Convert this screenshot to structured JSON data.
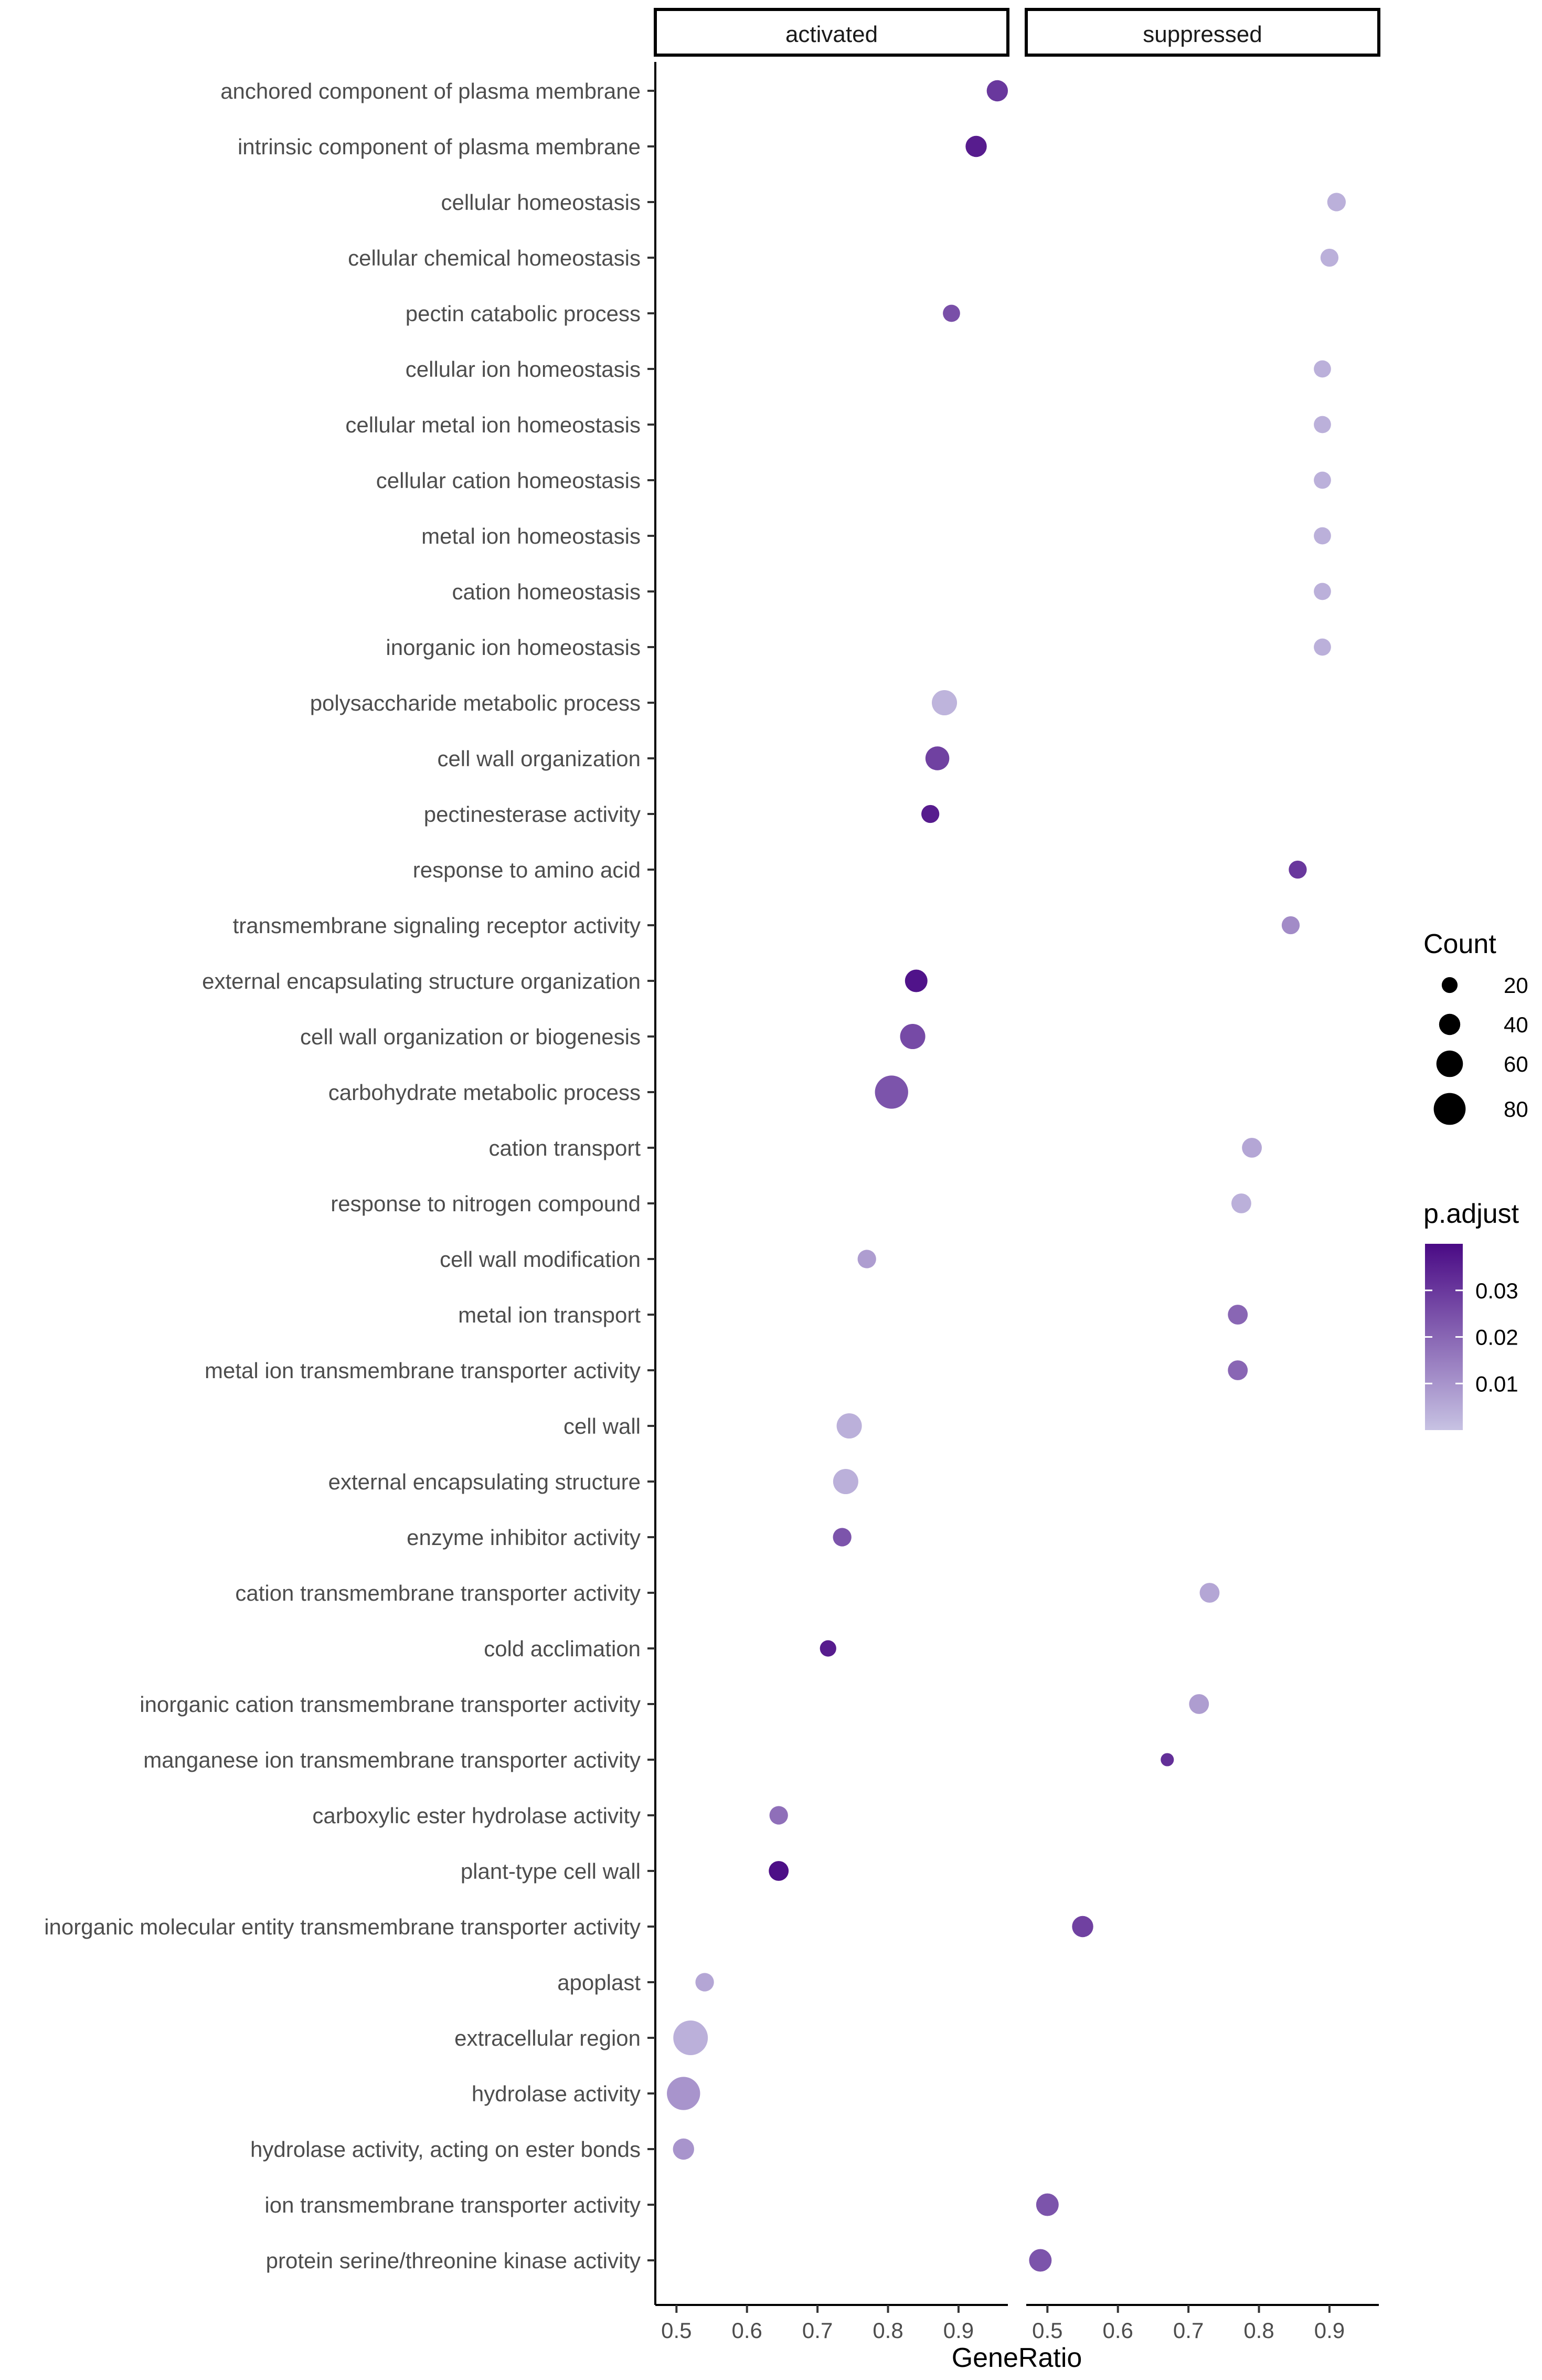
{
  "chart_data": {
    "type": "scatter",
    "title": "",
    "xlabel": "GeneRatio",
    "ylabel": "",
    "facets": [
      "activated",
      "suppressed"
    ],
    "facet_xlim": [
      [
        0.47,
        0.97
      ],
      [
        0.47,
        0.97
      ]
    ],
    "x_ticks": [
      0.5,
      0.6,
      0.7,
      0.8,
      0.9
    ],
    "x_tick_labels": [
      "0.5",
      "0.6",
      "0.7",
      "0.8",
      "0.9"
    ],
    "categories": [
      "anchored component of plasma membrane",
      "intrinsic component of plasma membrane",
      "cellular homeostasis",
      "cellular chemical homeostasis",
      "pectin catabolic process",
      "cellular ion homeostasis",
      "cellular metal ion homeostasis",
      "cellular cation homeostasis",
      "metal ion homeostasis",
      "cation homeostasis",
      "inorganic ion homeostasis",
      "polysaccharide metabolic process",
      "cell wall organization",
      "pectinesterase activity",
      "response to amino acid",
      "transmembrane signaling receptor activity",
      "external encapsulating structure organization",
      "cell wall organization or biogenesis",
      "carbohydrate metabolic process",
      "cation transport",
      "response to nitrogen compound",
      "cell wall modification",
      "metal ion transport",
      "metal ion transmembrane transporter activity",
      "cell wall",
      "external encapsulating structure",
      "enzyme inhibitor activity",
      "cation transmembrane transporter activity",
      "cold acclimation",
      "inorganic cation transmembrane transporter activity",
      "manganese ion transmembrane transporter activity",
      "carboxylic ester hydrolase activity",
      "plant-type cell wall",
      "inorganic molecular entity transmembrane transporter activity",
      "apoplast",
      "extracellular region",
      "hydrolase activity",
      "hydrolase activity, acting on ester bonds",
      "ion transmembrane transporter activity",
      "protein serine/threonine kinase activity"
    ],
    "points": [
      {
        "term": "anchored component of plasma membrane",
        "facet": "activated",
        "gene_ratio": 0.955,
        "count": 40,
        "p_adjust": 0.03
      },
      {
        "term": "intrinsic component of plasma membrane",
        "facet": "activated",
        "gene_ratio": 0.925,
        "count": 40,
        "p_adjust": 0.036
      },
      {
        "term": "cellular homeostasis",
        "facet": "suppressed",
        "gene_ratio": 0.91,
        "count": 30,
        "p_adjust": 0.004
      },
      {
        "term": "cellular chemical homeostasis",
        "facet": "suppressed",
        "gene_ratio": 0.9,
        "count": 28,
        "p_adjust": 0.004
      },
      {
        "term": "pectin catabolic process",
        "facet": "activated",
        "gene_ratio": 0.89,
        "count": 25,
        "p_adjust": 0.025
      },
      {
        "term": "cellular ion homeostasis",
        "facet": "suppressed",
        "gene_ratio": 0.89,
        "count": 25,
        "p_adjust": 0.004
      },
      {
        "term": "cellular metal ion homeostasis",
        "facet": "suppressed",
        "gene_ratio": 0.89,
        "count": 25,
        "p_adjust": 0.004
      },
      {
        "term": "cellular cation homeostasis",
        "facet": "suppressed",
        "gene_ratio": 0.89,
        "count": 25,
        "p_adjust": 0.004
      },
      {
        "term": "metal ion homeostasis",
        "facet": "suppressed",
        "gene_ratio": 0.89,
        "count": 25,
        "p_adjust": 0.004
      },
      {
        "term": "cation homeostasis",
        "facet": "suppressed",
        "gene_ratio": 0.89,
        "count": 25,
        "p_adjust": 0.004
      },
      {
        "term": "inorganic ion homeostasis",
        "facet": "suppressed",
        "gene_ratio": 0.89,
        "count": 25,
        "p_adjust": 0.004
      },
      {
        "term": "polysaccharide metabolic process",
        "facet": "activated",
        "gene_ratio": 0.88,
        "count": 55,
        "p_adjust": 0.003
      },
      {
        "term": "cell wall organization",
        "facet": "activated",
        "gene_ratio": 0.87,
        "count": 50,
        "p_adjust": 0.028
      },
      {
        "term": "pectinesterase activity",
        "facet": "activated",
        "gene_ratio": 0.86,
        "count": 28,
        "p_adjust": 0.036
      },
      {
        "term": "response to amino acid",
        "facet": "suppressed",
        "gene_ratio": 0.855,
        "count": 28,
        "p_adjust": 0.03
      },
      {
        "term": "transmembrane signaling receptor activity",
        "facet": "suppressed",
        "gene_ratio": 0.845,
        "count": 28,
        "p_adjust": 0.012
      },
      {
        "term": "external encapsulating structure organization",
        "facet": "activated",
        "gene_ratio": 0.84,
        "count": 45,
        "p_adjust": 0.038
      },
      {
        "term": "cell wall organization or biogenesis",
        "facet": "activated",
        "gene_ratio": 0.835,
        "count": 55,
        "p_adjust": 0.026
      },
      {
        "term": "carbohydrate metabolic process",
        "facet": "activated",
        "gene_ratio": 0.805,
        "count": 85,
        "p_adjust": 0.024
      },
      {
        "term": "cation transport",
        "facet": "suppressed",
        "gene_ratio": 0.79,
        "count": 35,
        "p_adjust": 0.006
      },
      {
        "term": "response to nitrogen compound",
        "facet": "suppressed",
        "gene_ratio": 0.775,
        "count": 35,
        "p_adjust": 0.004
      },
      {
        "term": "cell wall modification",
        "facet": "activated",
        "gene_ratio": 0.77,
        "count": 30,
        "p_adjust": 0.008
      },
      {
        "term": "metal ion transport",
        "facet": "suppressed",
        "gene_ratio": 0.77,
        "count": 35,
        "p_adjust": 0.02
      },
      {
        "term": "metal ion transmembrane transporter activity",
        "facet": "suppressed",
        "gene_ratio": 0.77,
        "count": 35,
        "p_adjust": 0.02
      },
      {
        "term": "cell wall",
        "facet": "activated",
        "gene_ratio": 0.745,
        "count": 55,
        "p_adjust": 0.004
      },
      {
        "term": "external encapsulating structure",
        "facet": "activated",
        "gene_ratio": 0.74,
        "count": 55,
        "p_adjust": 0.004
      },
      {
        "term": "enzyme inhibitor activity",
        "facet": "activated",
        "gene_ratio": 0.735,
        "count": 30,
        "p_adjust": 0.024
      },
      {
        "term": "cation transmembrane transporter activity",
        "facet": "suppressed",
        "gene_ratio": 0.73,
        "count": 35,
        "p_adjust": 0.006
      },
      {
        "term": "cold acclimation",
        "facet": "activated",
        "gene_ratio": 0.715,
        "count": 22,
        "p_adjust": 0.036
      },
      {
        "term": "inorganic cation transmembrane transporter activity",
        "facet": "suppressed",
        "gene_ratio": 0.715,
        "count": 35,
        "p_adjust": 0.008
      },
      {
        "term": "manganese ion transmembrane transporter activity",
        "facet": "suppressed",
        "gene_ratio": 0.67,
        "count": 10,
        "p_adjust": 0.032
      },
      {
        "term": "carboxylic ester hydrolase activity",
        "facet": "activated",
        "gene_ratio": 0.645,
        "count": 30,
        "p_adjust": 0.018
      },
      {
        "term": "plant-type cell wall",
        "facet": "activated",
        "gene_ratio": 0.645,
        "count": 35,
        "p_adjust": 0.039
      },
      {
        "term": "inorganic molecular entity transmembrane transporter activity",
        "facet": "suppressed",
        "gene_ratio": 0.55,
        "count": 40,
        "p_adjust": 0.028
      },
      {
        "term": "apoplast",
        "facet": "activated",
        "gene_ratio": 0.54,
        "count": 30,
        "p_adjust": 0.006
      },
      {
        "term": "extracellular region",
        "facet": "activated",
        "gene_ratio": 0.52,
        "count": 90,
        "p_adjust": 0.004
      },
      {
        "term": "hydrolase activity",
        "facet": "activated",
        "gene_ratio": 0.51,
        "count": 85,
        "p_adjust": 0.01
      },
      {
        "term": "hydrolase activity, acting on ester bonds",
        "facet": "activated",
        "gene_ratio": 0.51,
        "count": 40,
        "p_adjust": 0.01
      },
      {
        "term": "ion transmembrane transporter activity",
        "facet": "suppressed",
        "gene_ratio": 0.5,
        "count": 45,
        "p_adjust": 0.024
      },
      {
        "term": "protein serine/threonine kinase activity",
        "facet": "suppressed",
        "gene_ratio": 0.49,
        "count": 45,
        "p_adjust": 0.024
      }
    ],
    "legend_count": {
      "title": "Count",
      "values": [
        20,
        40,
        60,
        80
      ],
      "labels": [
        "20",
        "40",
        "60",
        "80"
      ]
    },
    "legend_padjust": {
      "title": "p.adjust",
      "range": [
        0.0,
        0.04
      ],
      "ticks": [
        0.01,
        0.02,
        0.03
      ],
      "tick_labels": [
        "0.01",
        "0.02",
        "0.03"
      ],
      "color_low": "#c7c2e3",
      "color_high": "#4a0a85"
    },
    "legend_placement": "right"
  }
}
